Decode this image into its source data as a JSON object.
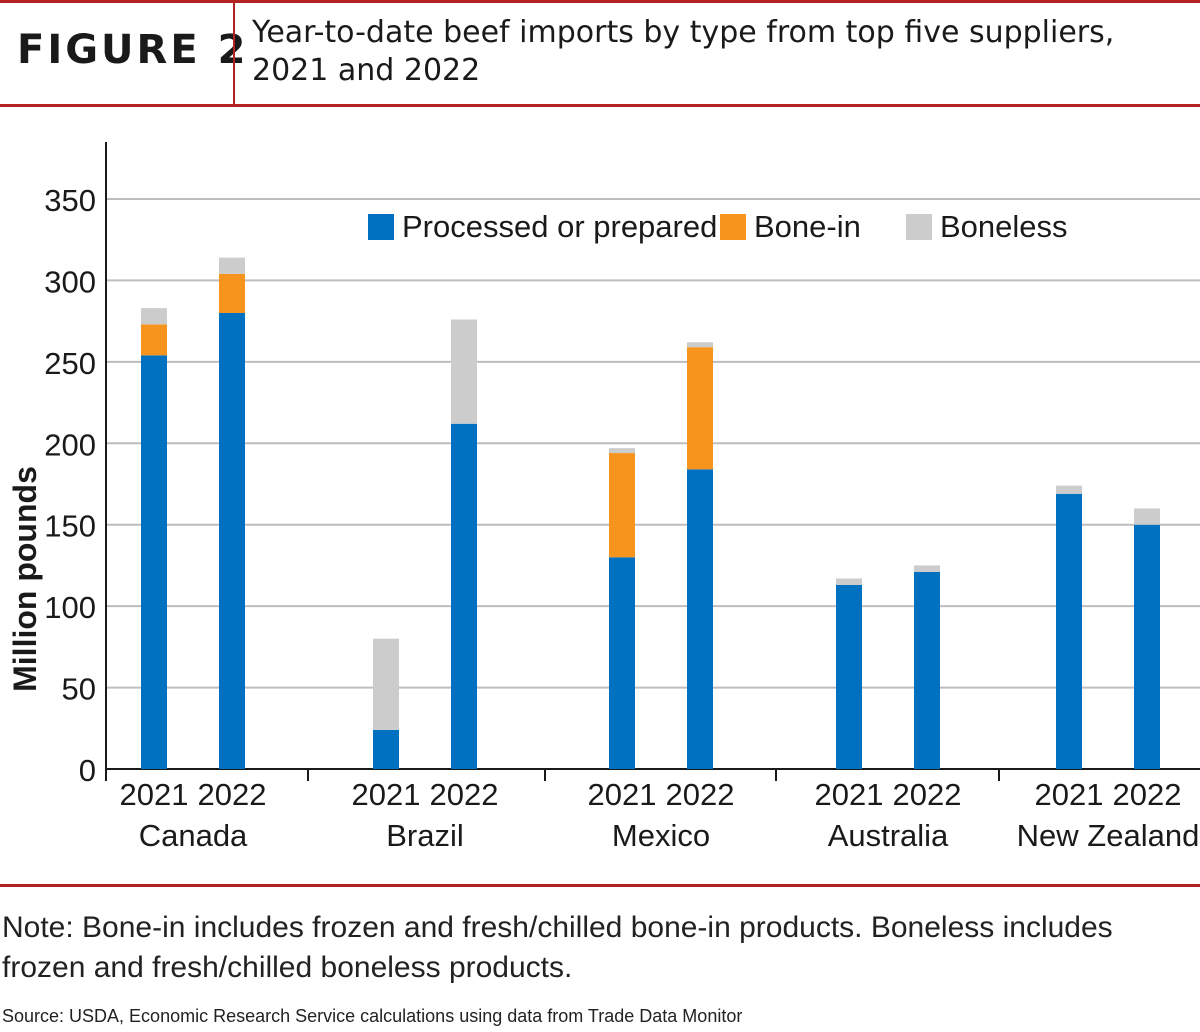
{
  "figure_label": "FIGURE 2",
  "title": "Year-to-date beef imports by type from top five suppliers, 2021 and 2022",
  "note": "Note: Bone-in includes frozen and fresh/chilled bone-in products. Boneless includes frozen and fresh/chilled boneless products.",
  "source": "Source: USDA, Economic Research Service calculations using data from Trade Data Monitor",
  "colors": {
    "accent": "#b22222",
    "processed": "#0070c0",
    "bone_in": "#f7941d",
    "boneless": "#cccccc",
    "grid": "#bdbdbd",
    "axis": "#1a1a1a"
  },
  "chart_data": {
    "type": "bar",
    "stacked": true,
    "ylabel": "Million pounds",
    "ylim": [
      0,
      385
    ],
    "yticks": [
      0,
      50,
      100,
      150,
      200,
      250,
      300,
      350
    ],
    "grid": true,
    "legend_position": "top-center",
    "groups": [
      {
        "name": "Canada",
        "bars": [
          {
            "label": "2021",
            "processed": 254,
            "bone_in": 19,
            "boneless": 10
          },
          {
            "label": "2022",
            "processed": 280,
            "bone_in": 24,
            "boneless": 10
          }
        ]
      },
      {
        "name": "Brazil",
        "bars": [
          {
            "label": "2021",
            "processed": 24,
            "bone_in": 0,
            "boneless": 56
          },
          {
            "label": "2022",
            "processed": 212,
            "bone_in": 0,
            "boneless": 64
          }
        ]
      },
      {
        "name": "Mexico",
        "bars": [
          {
            "label": "2021",
            "processed": 130,
            "bone_in": 64,
            "boneless": 3
          },
          {
            "label": "2022",
            "processed": 184,
            "bone_in": 75,
            "boneless": 3
          }
        ]
      },
      {
        "name": "Australia",
        "bars": [
          {
            "label": "2021",
            "processed": 113,
            "bone_in": 0,
            "boneless": 4
          },
          {
            "label": "2022",
            "processed": 121,
            "bone_in": 0,
            "boneless": 4
          }
        ]
      },
      {
        "name": "New Zealand",
        "bars": [
          {
            "label": "2021",
            "processed": 169,
            "bone_in": 0,
            "boneless": 5
          },
          {
            "label": "2022",
            "processed": 150,
            "bone_in": 0,
            "boneless": 10
          }
        ]
      }
    ],
    "series": [
      {
        "key": "processed",
        "name": "Processed or prepared",
        "color": "#0070c0"
      },
      {
        "key": "bone_in",
        "name": "Bone-in",
        "color": "#f7941d"
      },
      {
        "key": "boneless",
        "name": "Boneless",
        "color": "#cccccc"
      }
    ]
  }
}
